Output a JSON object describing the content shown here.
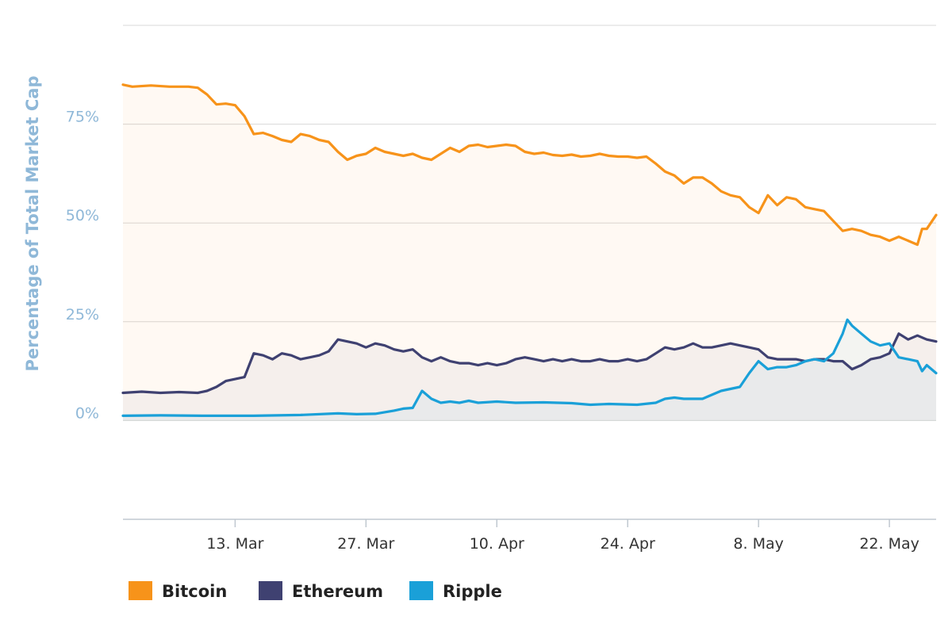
{
  "chart_data": {
    "type": "area",
    "ylabel": "Percentage of Total Market Cap",
    "ylim": [
      -25,
      100
    ],
    "yticks": [
      {
        "value": 0,
        "label": "0%"
      },
      {
        "value": 25,
        "label": "25%"
      },
      {
        "value": 50,
        "label": "50%"
      },
      {
        "value": 75,
        "label": "75%"
      }
    ],
    "xlim": [
      "2017-03-01",
      "2017-05-27"
    ],
    "xticks": [
      {
        "value": "2017-03-13",
        "label": "13. Mar"
      },
      {
        "value": "2017-03-27",
        "label": "27. Mar"
      },
      {
        "value": "2017-04-10",
        "label": "10. Apr"
      },
      {
        "value": "2017-04-24",
        "label": "24. Apr"
      },
      {
        "value": "2017-05-08",
        "label": "8. May"
      },
      {
        "value": "2017-05-22",
        "label": "22. May"
      }
    ],
    "grid": true,
    "legend_position": "bottom-left",
    "series": [
      {
        "name": "Bitcoin",
        "color": "#f7931a",
        "points": [
          [
            "2017-03-01",
            85.0
          ],
          [
            "2017-03-02",
            84.5
          ],
          [
            "2017-03-04",
            84.8
          ],
          [
            "2017-03-06",
            84.5
          ],
          [
            "2017-03-08",
            84.5
          ],
          [
            "2017-03-09",
            84.2
          ],
          [
            "2017-03-10",
            82.5
          ],
          [
            "2017-03-11",
            80.0
          ],
          [
            "2017-03-12",
            80.2
          ],
          [
            "2017-03-13",
            79.8
          ],
          [
            "2017-03-14",
            77.0
          ],
          [
            "2017-03-15",
            72.5
          ],
          [
            "2017-03-16",
            72.8
          ],
          [
            "2017-03-17",
            72.0
          ],
          [
            "2017-03-18",
            71.0
          ],
          [
            "2017-03-19",
            70.5
          ],
          [
            "2017-03-20",
            72.5
          ],
          [
            "2017-03-21",
            72.0
          ],
          [
            "2017-03-22",
            71.0
          ],
          [
            "2017-03-23",
            70.5
          ],
          [
            "2017-03-24",
            68.0
          ],
          [
            "2017-03-25",
            66.0
          ],
          [
            "2017-03-26",
            67.0
          ],
          [
            "2017-03-27",
            67.5
          ],
          [
            "2017-03-28",
            69.0
          ],
          [
            "2017-03-29",
            68.0
          ],
          [
            "2017-03-30",
            67.5
          ],
          [
            "2017-03-31",
            67.0
          ],
          [
            "2017-04-01",
            67.5
          ],
          [
            "2017-04-02",
            66.5
          ],
          [
            "2017-04-03",
            66.0
          ],
          [
            "2017-04-04",
            67.5
          ],
          [
            "2017-04-05",
            69.0
          ],
          [
            "2017-04-06",
            68.0
          ],
          [
            "2017-04-07",
            69.5
          ],
          [
            "2017-04-08",
            69.8
          ],
          [
            "2017-04-09",
            69.2
          ],
          [
            "2017-04-10",
            69.5
          ],
          [
            "2017-04-11",
            69.8
          ],
          [
            "2017-04-12",
            69.5
          ],
          [
            "2017-04-13",
            68.0
          ],
          [
            "2017-04-14",
            67.5
          ],
          [
            "2017-04-15",
            67.8
          ],
          [
            "2017-04-16",
            67.2
          ],
          [
            "2017-04-17",
            67.0
          ],
          [
            "2017-04-18",
            67.3
          ],
          [
            "2017-04-19",
            66.8
          ],
          [
            "2017-04-20",
            67.0
          ],
          [
            "2017-04-21",
            67.5
          ],
          [
            "2017-04-22",
            67.0
          ],
          [
            "2017-04-23",
            66.8
          ],
          [
            "2017-04-24",
            66.8
          ],
          [
            "2017-04-25",
            66.5
          ],
          [
            "2017-04-26",
            66.8
          ],
          [
            "2017-04-27",
            65.0
          ],
          [
            "2017-04-28",
            63.0
          ],
          [
            "2017-04-29",
            62.0
          ],
          [
            "2017-04-30",
            60.0
          ],
          [
            "2017-05-01",
            61.5
          ],
          [
            "2017-05-02",
            61.5
          ],
          [
            "2017-05-03",
            60.0
          ],
          [
            "2017-05-04",
            58.0
          ],
          [
            "2017-05-05",
            57.0
          ],
          [
            "2017-05-06",
            56.5
          ],
          [
            "2017-05-07",
            54.0
          ],
          [
            "2017-05-08",
            52.5
          ],
          [
            "2017-05-09",
            57.0
          ],
          [
            "2017-05-10",
            54.5
          ],
          [
            "2017-05-11",
            56.5
          ],
          [
            "2017-05-12",
            56.0
          ],
          [
            "2017-05-13",
            54.0
          ],
          [
            "2017-05-14",
            53.5
          ],
          [
            "2017-05-15",
            53.0
          ],
          [
            "2017-05-16",
            50.5
          ],
          [
            "2017-05-17",
            48.0
          ],
          [
            "2017-05-18",
            48.5
          ],
          [
            "2017-05-19",
            48.0
          ],
          [
            "2017-05-20",
            47.0
          ],
          [
            "2017-05-21",
            46.5
          ],
          [
            "2017-05-22",
            45.5
          ],
          [
            "2017-05-23",
            46.5
          ],
          [
            "2017-05-24",
            45.5
          ],
          [
            "2017-05-25",
            44.5
          ],
          [
            "2017-05-25.5",
            48.5
          ],
          [
            "2017-05-26",
            48.5
          ],
          [
            "2017-05-27",
            52.0
          ]
        ]
      },
      {
        "name": "Ethereum",
        "color": "#3f4171",
        "points": [
          [
            "2017-03-01",
            7.0
          ],
          [
            "2017-03-03",
            7.3
          ],
          [
            "2017-03-05",
            7.0
          ],
          [
            "2017-03-07",
            7.2
          ],
          [
            "2017-03-09",
            7.0
          ],
          [
            "2017-03-10",
            7.5
          ],
          [
            "2017-03-11",
            8.5
          ],
          [
            "2017-03-12",
            10.0
          ],
          [
            "2017-03-13",
            10.5
          ],
          [
            "2017-03-14",
            11.0
          ],
          [
            "2017-03-15",
            17.0
          ],
          [
            "2017-03-16",
            16.5
          ],
          [
            "2017-03-17",
            15.5
          ],
          [
            "2017-03-18",
            17.0
          ],
          [
            "2017-03-19",
            16.5
          ],
          [
            "2017-03-20",
            15.5
          ],
          [
            "2017-03-21",
            16.0
          ],
          [
            "2017-03-22",
            16.5
          ],
          [
            "2017-03-23",
            17.5
          ],
          [
            "2017-03-24",
            20.5
          ],
          [
            "2017-03-25",
            20.0
          ],
          [
            "2017-03-26",
            19.5
          ],
          [
            "2017-03-27",
            18.5
          ],
          [
            "2017-03-28",
            19.5
          ],
          [
            "2017-03-29",
            19.0
          ],
          [
            "2017-03-30",
            18.0
          ],
          [
            "2017-03-31",
            17.5
          ],
          [
            "2017-04-01",
            18.0
          ],
          [
            "2017-04-02",
            16.0
          ],
          [
            "2017-04-03",
            15.0
          ],
          [
            "2017-04-04",
            16.0
          ],
          [
            "2017-04-05",
            15.0
          ],
          [
            "2017-04-06",
            14.5
          ],
          [
            "2017-04-07",
            14.5
          ],
          [
            "2017-04-08",
            14.0
          ],
          [
            "2017-04-09",
            14.5
          ],
          [
            "2017-04-10",
            14.0
          ],
          [
            "2017-04-11",
            14.5
          ],
          [
            "2017-04-12",
            15.5
          ],
          [
            "2017-04-13",
            16.0
          ],
          [
            "2017-04-14",
            15.5
          ],
          [
            "2017-04-15",
            15.0
          ],
          [
            "2017-04-16",
            15.5
          ],
          [
            "2017-04-17",
            15.0
          ],
          [
            "2017-04-18",
            15.5
          ],
          [
            "2017-04-19",
            15.0
          ],
          [
            "2017-04-20",
            15.0
          ],
          [
            "2017-04-21",
            15.5
          ],
          [
            "2017-04-22",
            15.0
          ],
          [
            "2017-04-23",
            15.0
          ],
          [
            "2017-04-24",
            15.5
          ],
          [
            "2017-04-25",
            15.0
          ],
          [
            "2017-04-26",
            15.5
          ],
          [
            "2017-04-27",
            17.0
          ],
          [
            "2017-04-28",
            18.5
          ],
          [
            "2017-04-29",
            18.0
          ],
          [
            "2017-04-30",
            18.5
          ],
          [
            "2017-05-01",
            19.5
          ],
          [
            "2017-05-02",
            18.5
          ],
          [
            "2017-05-03",
            18.5
          ],
          [
            "2017-05-04",
            19.0
          ],
          [
            "2017-05-05",
            19.5
          ],
          [
            "2017-05-06",
            19.0
          ],
          [
            "2017-05-07",
            18.5
          ],
          [
            "2017-05-08",
            18.0
          ],
          [
            "2017-05-09",
            16.0
          ],
          [
            "2017-05-10",
            15.5
          ],
          [
            "2017-05-11",
            15.5
          ],
          [
            "2017-05-12",
            15.5
          ],
          [
            "2017-05-13",
            15.0
          ],
          [
            "2017-05-14",
            15.5
          ],
          [
            "2017-05-15",
            15.5
          ],
          [
            "2017-05-16",
            15.0
          ],
          [
            "2017-05-17",
            15.0
          ],
          [
            "2017-05-18",
            13.0
          ],
          [
            "2017-05-19",
            14.0
          ],
          [
            "2017-05-20",
            15.5
          ],
          [
            "2017-05-21",
            16.0
          ],
          [
            "2017-05-22",
            17.0
          ],
          [
            "2017-05-23",
            22.0
          ],
          [
            "2017-05-24",
            20.5
          ],
          [
            "2017-05-25",
            21.5
          ],
          [
            "2017-05-26",
            20.5
          ],
          [
            "2017-05-27",
            20.0
          ]
        ]
      },
      {
        "name": "Ripple",
        "color": "#1aa0d8",
        "points": [
          [
            "2017-03-01",
            1.2
          ],
          [
            "2017-03-05",
            1.3
          ],
          [
            "2017-03-10",
            1.2
          ],
          [
            "2017-03-15",
            1.2
          ],
          [
            "2017-03-20",
            1.4
          ],
          [
            "2017-03-24",
            1.8
          ],
          [
            "2017-03-26",
            1.6
          ],
          [
            "2017-03-28",
            1.7
          ],
          [
            "2017-03-30",
            2.5
          ],
          [
            "2017-03-31",
            3.0
          ],
          [
            "2017-04-01",
            3.2
          ],
          [
            "2017-04-02",
            7.5
          ],
          [
            "2017-04-03",
            5.5
          ],
          [
            "2017-04-04",
            4.5
          ],
          [
            "2017-04-05",
            4.8
          ],
          [
            "2017-04-06",
            4.5
          ],
          [
            "2017-04-07",
            5.0
          ],
          [
            "2017-04-08",
            4.5
          ],
          [
            "2017-04-10",
            4.8
          ],
          [
            "2017-04-12",
            4.5
          ],
          [
            "2017-04-15",
            4.6
          ],
          [
            "2017-04-18",
            4.4
          ],
          [
            "2017-04-20",
            4.0
          ],
          [
            "2017-04-22",
            4.2
          ],
          [
            "2017-04-25",
            4.0
          ],
          [
            "2017-04-27",
            4.5
          ],
          [
            "2017-04-28",
            5.5
          ],
          [
            "2017-04-29",
            5.8
          ],
          [
            "2017-04-30",
            5.5
          ],
          [
            "2017-05-01",
            5.5
          ],
          [
            "2017-05-02",
            5.5
          ],
          [
            "2017-05-03",
            6.5
          ],
          [
            "2017-05-04",
            7.5
          ],
          [
            "2017-05-05",
            8.0
          ],
          [
            "2017-05-06",
            8.5
          ],
          [
            "2017-05-07",
            12.0
          ],
          [
            "2017-05-08",
            15.0
          ],
          [
            "2017-05-09",
            13.0
          ],
          [
            "2017-05-10",
            13.5
          ],
          [
            "2017-05-11",
            13.5
          ],
          [
            "2017-05-12",
            14.0
          ],
          [
            "2017-05-13",
            15.0
          ],
          [
            "2017-05-14",
            15.5
          ],
          [
            "2017-05-15",
            15.0
          ],
          [
            "2017-05-16",
            17.0
          ],
          [
            "2017-05-17",
            22.0
          ],
          [
            "2017-05-17.5",
            25.5
          ],
          [
            "2017-05-18",
            24.0
          ],
          [
            "2017-05-19",
            22.0
          ],
          [
            "2017-05-20",
            20.0
          ],
          [
            "2017-05-21",
            19.0
          ],
          [
            "2017-05-22",
            19.5
          ],
          [
            "2017-05-23",
            16.0
          ],
          [
            "2017-05-24",
            15.5
          ],
          [
            "2017-05-25",
            15.0
          ],
          [
            "2017-05-25.5",
            12.5
          ],
          [
            "2017-05-26",
            14.0
          ],
          [
            "2017-05-27",
            12.0
          ]
        ]
      }
    ]
  }
}
